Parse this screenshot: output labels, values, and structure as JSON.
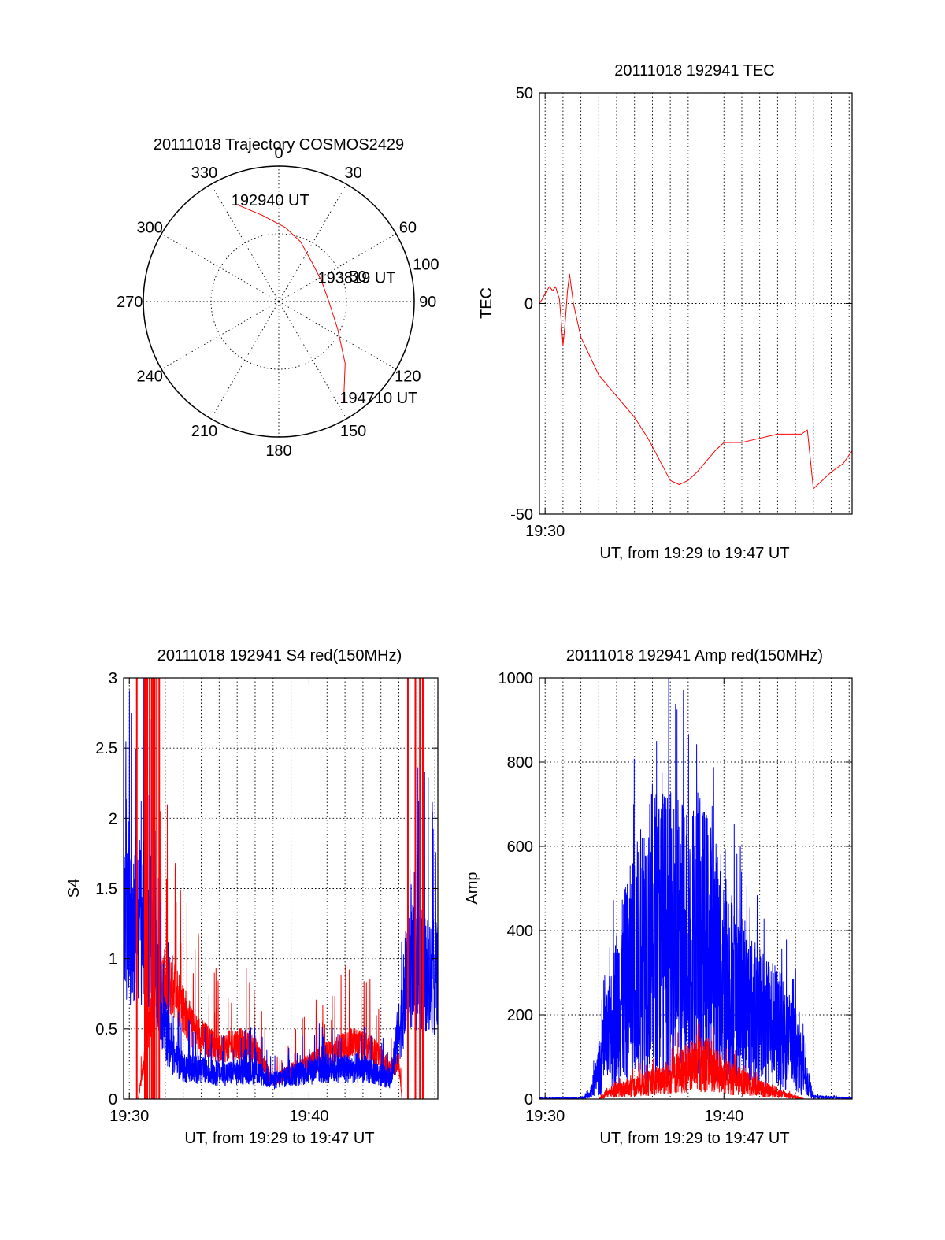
{
  "colors": {
    "red": "#ff0000",
    "blue": "#0000ff",
    "axes": "#000000"
  },
  "chart_data": [
    {
      "id": "trajectory",
      "type": "polar",
      "title": "20111018 Trajectory COSMOS2429",
      "angle_labels": [
        {
          "deg": 0,
          "text": "0"
        },
        {
          "deg": 30,
          "text": "30"
        },
        {
          "deg": 60,
          "text": "60"
        },
        {
          "deg": 90,
          "text": "90"
        },
        {
          "deg": 120,
          "text": "120"
        },
        {
          "deg": 150,
          "text": "150"
        },
        {
          "deg": 180,
          "text": "180"
        },
        {
          "deg": 210,
          "text": "210"
        },
        {
          "deg": 240,
          "text": "240"
        },
        {
          "deg": 270,
          "text": "270"
        },
        {
          "deg": 300,
          "text": "300"
        },
        {
          "deg": 330,
          "text": "330"
        }
      ],
      "radius_max": 100,
      "radius_labels": [
        {
          "r": 50,
          "text": "50"
        },
        {
          "r": 100,
          "text": "100"
        }
      ],
      "track": [
        {
          "az": 336,
          "zen": 79
        },
        {
          "az": 349,
          "zen": 65
        },
        {
          "az": 5,
          "zen": 55
        },
        {
          "az": 20,
          "zen": 47
        },
        {
          "az": 40,
          "zen": 38
        },
        {
          "az": 65,
          "zen": 35
        },
        {
          "az": 90,
          "zen": 37
        },
        {
          "az": 115,
          "zen": 48
        },
        {
          "az": 133,
          "zen": 67
        },
        {
          "az": 147,
          "zen": 88
        }
      ],
      "time_labels": [
        {
          "text": "192940 UT",
          "az": 336,
          "zen": 79
        },
        {
          "text": "193819 UT",
          "az": 65,
          "zen": 35
        },
        {
          "text": "194710 UT",
          "az": 147,
          "zen": 88
        }
      ]
    },
    {
      "id": "tec",
      "type": "line",
      "title": "20111018 192941 TEC",
      "xlabel": "UT, from 19:29 to 19:47 UT",
      "ylabel": "TEC",
      "xlim": [
        "19:29:41",
        "19:47:10"
      ],
      "ylim": [
        -50,
        50
      ],
      "yticks": [
        -50,
        0,
        50
      ],
      "xticks": [
        {
          "t": "19:30:00",
          "label": "19:30"
        }
      ],
      "xgrid_step_s": 60,
      "ygrid": [
        0
      ],
      "series": [
        {
          "color": "red",
          "points": [
            [
              "19:29:41",
              0
            ],
            [
              "19:29:50",
              1
            ],
            [
              "19:30:05",
              3
            ],
            [
              "19:30:15",
              4
            ],
            [
              "19:30:25",
              3
            ],
            [
              "19:30:35",
              4
            ],
            [
              "19:30:48",
              1
            ],
            [
              "19:30:55",
              -5
            ],
            [
              "19:31:00",
              -10
            ],
            [
              "19:31:08",
              -4
            ],
            [
              "19:31:15",
              3
            ],
            [
              "19:31:22",
              7
            ],
            [
              "19:31:35",
              0
            ],
            [
              "19:32:00",
              -8
            ],
            [
              "19:33:00",
              -17
            ],
            [
              "19:34:00",
              -22
            ],
            [
              "19:35:00",
              -27
            ],
            [
              "19:35:45",
              -32
            ],
            [
              "19:36:30",
              -38
            ],
            [
              "19:37:00",
              -42
            ],
            [
              "19:37:30",
              -43
            ],
            [
              "19:38:00",
              -42
            ],
            [
              "19:38:30",
              -40
            ],
            [
              "19:39:30",
              -35
            ],
            [
              "19:40:00",
              -33
            ],
            [
              "19:41:00",
              -33
            ],
            [
              "19:42:00",
              -32
            ],
            [
              "19:43:00",
              -31
            ],
            [
              "19:44:20",
              -31
            ],
            [
              "19:44:40",
              -30
            ],
            [
              "19:44:50",
              -37
            ],
            [
              "19:45:00",
              -44
            ],
            [
              "19:45:30",
              -42
            ],
            [
              "19:46:00",
              -40
            ],
            [
              "19:46:40",
              -38
            ],
            [
              "19:47:10",
              -35
            ]
          ]
        }
      ]
    },
    {
      "id": "s4",
      "type": "line",
      "title": "20111018 192941 S4 red(150MHz)",
      "xlabel": "UT, from 19:29 to 19:47 UT",
      "ylabel": "S4",
      "xlim": [
        "19:29:41",
        "19:47:10"
      ],
      "ylim": [
        0,
        3
      ],
      "yticks": [
        0,
        0.5,
        1,
        1.5,
        2,
        2.5,
        3
      ],
      "ytick_labels": [
        "0",
        "0.5",
        "1",
        "1.5",
        "2",
        "2.5",
        "3"
      ],
      "xticks": [
        {
          "t": "19:30:00",
          "label": "19:30"
        },
        {
          "t": "19:40:00",
          "label": "19:40"
        }
      ],
      "xgrid_step_s": 60,
      "ygrid": [
        0.5,
        1,
        1.5,
        2,
        2.5
      ],
      "noise_series": [
        {
          "color": "red",
          "amp": 0.18,
          "envelope": [
            [
              "19:29:41",
              0.0
            ],
            [
              "19:30:30",
              0.0
            ],
            [
              "19:31:30",
              0.85
            ],
            [
              "19:32:30",
              0.8
            ],
            [
              "19:33:30",
              0.5
            ],
            [
              "19:35:00",
              0.35
            ],
            [
              "19:36:00",
              0.4
            ],
            [
              "19:37:00",
              0.35
            ],
            [
              "19:38:00",
              0.13
            ],
            [
              "19:39:00",
              0.2
            ],
            [
              "19:40:00",
              0.25
            ],
            [
              "19:41:30",
              0.35
            ],
            [
              "19:42:30",
              0.4
            ],
            [
              "19:43:30",
              0.35
            ],
            [
              "19:44:30",
              0.22
            ],
            [
              "19:45:00",
              0.25
            ],
            [
              "19:45:10",
              0.0
            ],
            [
              "19:47:10",
              0.0
            ]
          ]
        },
        {
          "color": "blue",
          "amp": 0.3,
          "envelope": [
            [
              "19:29:41",
              1.2
            ],
            [
              "19:30:30",
              1.3
            ],
            [
              "19:31:00",
              1.2
            ],
            [
              "19:31:30",
              0.9
            ],
            [
              "19:32:00",
              0.5
            ],
            [
              "19:32:30",
              0.3
            ],
            [
              "19:33:00",
              0.23
            ],
            [
              "19:35:00",
              0.18
            ],
            [
              "19:37:00",
              0.2
            ],
            [
              "19:38:00",
              0.13
            ],
            [
              "19:39:00",
              0.17
            ],
            [
              "19:41:00",
              0.22
            ],
            [
              "19:43:00",
              0.22
            ],
            [
              "19:44:30",
              0.15
            ],
            [
              "19:45:10",
              0.6
            ],
            [
              "19:45:30",
              0.95
            ],
            [
              "19:46:30",
              0.9
            ],
            [
              "19:47:10",
              0.85
            ]
          ]
        }
      ],
      "spikes": {
        "color": "red",
        "times": [
          "19:30:25",
          "19:30:52",
          "19:31:00",
          "19:31:08",
          "19:31:15",
          "19:31:20",
          "19:31:25",
          "19:31:32",
          "19:31:40",
          "19:45:30",
          "19:45:55",
          "19:46:10",
          "19:46:20"
        ]
      }
    },
    {
      "id": "amp",
      "type": "line",
      "title": "20111018 192941 Amp red(150MHz)",
      "xlabel": "UT, from 19:29 to 19:47 UT",
      "ylabel": "Amp",
      "xlim": [
        "19:29:41",
        "19:47:10"
      ],
      "ylim": [
        0,
        1000
      ],
      "yticks": [
        0,
        200,
        400,
        600,
        800,
        1000
      ],
      "ytick_labels": [
        "0",
        "200",
        "400",
        "600",
        "800",
        "1000"
      ],
      "xticks": [
        {
          "t": "19:30:00",
          "label": "19:30"
        },
        {
          "t": "19:40:00",
          "label": "19:40"
        }
      ],
      "xgrid_step_s": 60,
      "ygrid": [
        200,
        400,
        600,
        800
      ],
      "noise_series": [
        {
          "color": "blue",
          "amp": 0.55,
          "envelope": [
            [
              "19:29:41",
              2
            ],
            [
              "19:32:00",
              2
            ],
            [
              "19:32:30",
              10
            ],
            [
              "19:33:00",
              70
            ],
            [
              "19:33:30",
              140
            ],
            [
              "19:34:00",
              220
            ],
            [
              "19:35:00",
              320
            ],
            [
              "19:36:00",
              400
            ],
            [
              "19:37:00",
              390
            ],
            [
              "19:38:00",
              380
            ],
            [
              "19:39:00",
              370
            ],
            [
              "19:40:00",
              300
            ],
            [
              "19:41:00",
              230
            ],
            [
              "19:42:00",
              190
            ],
            [
              "19:43:00",
              170
            ],
            [
              "19:44:00",
              120
            ],
            [
              "19:44:30",
              60
            ],
            [
              "19:45:00",
              5
            ],
            [
              "19:47:10",
              2
            ]
          ]
        },
        {
          "color": "red",
          "amp": 0.5,
          "envelope": [
            [
              "19:29:41",
              0
            ],
            [
              "19:33:00",
              0
            ],
            [
              "19:33:30",
              15
            ],
            [
              "19:34:30",
              25
            ],
            [
              "19:36:00",
              40
            ],
            [
              "19:37:00",
              55
            ],
            [
              "19:38:00",
              75
            ],
            [
              "19:39:00",
              85
            ],
            [
              "19:40:00",
              55
            ],
            [
              "19:41:00",
              40
            ],
            [
              "19:42:00",
              25
            ],
            [
              "19:43:00",
              15
            ],
            [
              "19:44:00",
              5
            ],
            [
              "19:44:30",
              0
            ],
            [
              "19:47:10",
              0
            ]
          ]
        }
      ]
    }
  ]
}
